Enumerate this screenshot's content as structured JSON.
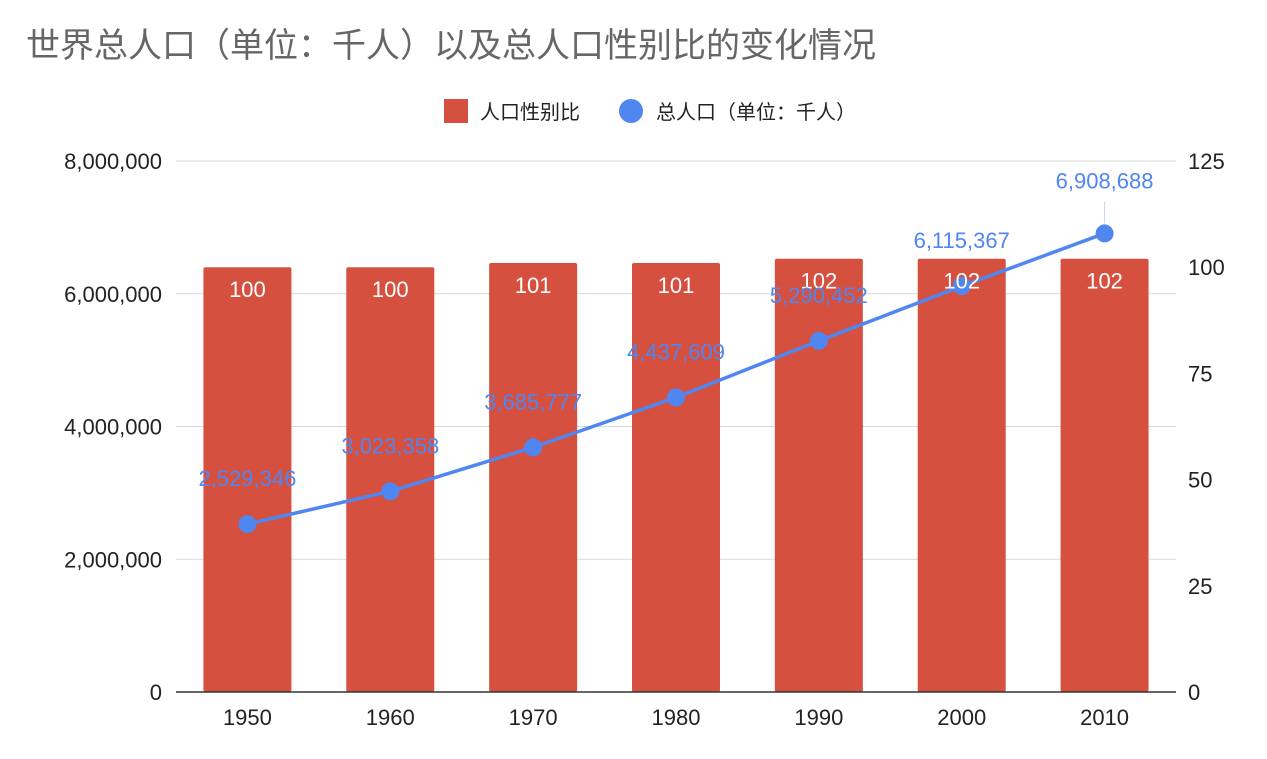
{
  "title": "世界总人口（单位：千人）以及总人口性别比的变化情况",
  "legend": {
    "items": [
      {
        "label": "人口性别比",
        "color": "#d65040",
        "shape": "square"
      },
      {
        "label": "总人口（单位：千人）",
        "color": "#4f86f0",
        "shape": "circle"
      }
    ]
  },
  "axes": {
    "left_ticks": [
      "0",
      "2,000,000",
      "4,000,000",
      "6,000,000",
      "8,000,000"
    ],
    "right_ticks": [
      "0",
      "25",
      "50",
      "75",
      "100",
      "125"
    ],
    "x_ticks": [
      "1950",
      "1960",
      "1970",
      "1980",
      "1990",
      "2000",
      "2010"
    ]
  },
  "chart_data": {
    "type": "bar",
    "title": "世界总人口（单位：千人）以及总人口性别比的变化情况",
    "categories": [
      "1950",
      "1960",
      "1970",
      "1980",
      "1990",
      "2000",
      "2010"
    ],
    "series": [
      {
        "name": "人口性别比",
        "type": "bar",
        "axis": "right",
        "color": "#d65040",
        "values": [
          100,
          100,
          101,
          101,
          102,
          102,
          102
        ],
        "labels": [
          "100",
          "100",
          "101",
          "101",
          "102",
          "102",
          "102"
        ]
      },
      {
        "name": "总人口（单位：千人）",
        "type": "line",
        "axis": "left",
        "color": "#4f86f0",
        "values": [
          2529346,
          3023358,
          3685777,
          4437609,
          5290452,
          6115367,
          6908688
        ],
        "labels": [
          "2,529,346",
          "3,023,358",
          "3,685,777",
          "4,437,609",
          "5,290,452",
          "6,115,367",
          "6,908,688"
        ]
      }
    ],
    "ylim_left": [
      0,
      8000000
    ],
    "ylim_right": [
      0,
      125
    ],
    "grid": true,
    "legend_position": "top"
  }
}
